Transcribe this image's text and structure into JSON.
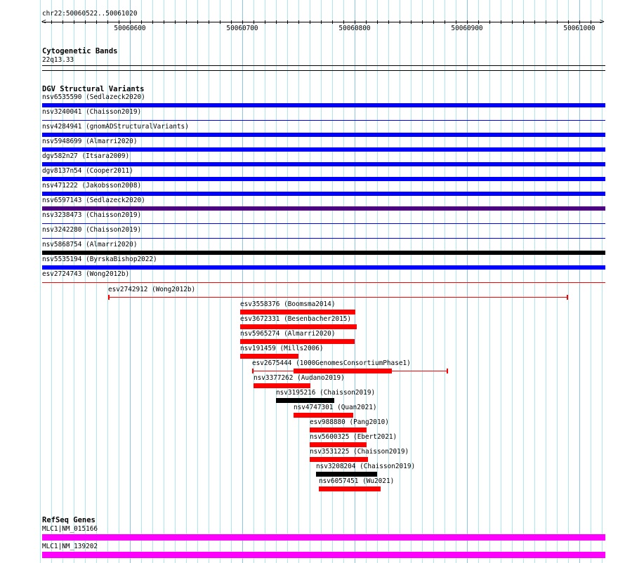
{
  "view": {
    "location": "chr22:50060522..50061020",
    "start": 50060522,
    "end": 50061020,
    "ruler_labels": [
      "50060600",
      "50060700",
      "50060800",
      "50060900",
      "50061000"
    ]
  },
  "colors": {
    "blue": "#0000ff",
    "purple": "#4b0082",
    "black": "#000000",
    "red": "#ff0000",
    "magenta": "#ff00ff",
    "grid_minor": "#aee6ee",
    "grid_major": "#8cc4e8"
  },
  "cytoband_track": {
    "title": "Cytogenetic Bands",
    "band": "22q13.33"
  },
  "dgv_track": {
    "title": "DGV Structural Variants",
    "full_rows": [
      {
        "label": "nsv6535590 (Sedlazeck2020)",
        "color": "blue",
        "style": "thick"
      },
      {
        "label": "nsv3240041 (Chaisson2019)",
        "color": "blue",
        "style": "thin"
      },
      {
        "label": "nsv4284941 (gnomADStructuralVariants)",
        "color": "blue",
        "style": "thick"
      },
      {
        "label": "nsv5948699 (Almarri2020)",
        "color": "blue",
        "style": "thick"
      },
      {
        "label": "dgv582n27 (Itsara2009)",
        "color": "blue",
        "style": "thick"
      },
      {
        "label": "dgv8137n54 (Cooper2011)",
        "color": "blue",
        "style": "thick"
      },
      {
        "label": "nsv471222 (Jakobsson2008)",
        "color": "blue",
        "style": "thick"
      },
      {
        "label": "nsv6597143 (Sedlazeck2020)",
        "color": "purple",
        "style": "thick"
      },
      {
        "label": "nsv3238473 (Chaisson2019)",
        "color": "blue",
        "style": "thin"
      },
      {
        "label": "nsv3242280 (Chaisson2019)",
        "color": "blue",
        "style": "thin"
      },
      {
        "label": "nsv5868754 (Almarri2020)",
        "color": "black",
        "style": "thick"
      },
      {
        "label": "nsv5535194 (ByrskaBishop2022)",
        "color": "blue",
        "style": "thick"
      },
      {
        "label": "esv2724743 (Wong2012b)",
        "color": "red",
        "style": "thin"
      }
    ],
    "features": [
      {
        "label": "esv2742912 (Wong2012b)",
        "color": "red",
        "start": 50060581,
        "end": 50060990,
        "style": "line"
      },
      {
        "label": "esv3558376 (Boomsma2014)",
        "color": "red",
        "start": 50060698,
        "end": 50060801,
        "style": "thick"
      },
      {
        "label": "esv3672331 (Besenbacher2015)",
        "color": "red",
        "start": 50060698,
        "end": 50060802,
        "style": "thick"
      },
      {
        "label": "nsv5965274 (Almarri2020)",
        "color": "red",
        "start": 50060698,
        "end": 50060800,
        "style": "thick"
      },
      {
        "label": "nsv191459 (Mills2006)",
        "color": "red",
        "start": 50060698,
        "end": 50060750,
        "style": "thick"
      },
      {
        "label": "esv2675444 (1000GenomesConsortiumPhase1)",
        "color": "red",
        "start": 50060709,
        "end": 50060883,
        "thick_start": 50060746,
        "thick_end": 50060833,
        "style": "mixed"
      },
      {
        "label": "nsv3377262 (Audano2019)",
        "color": "red",
        "start": 50060710,
        "end": 50060761,
        "style": "thick"
      },
      {
        "label": "nsv3195216 (Chaisson2019)",
        "color": "black",
        "start": 50060730,
        "end": 50060782,
        "style": "thick"
      },
      {
        "label": "nsv4747301 (Quan2021)",
        "color": "red",
        "start": 50060746,
        "end": 50060799,
        "style": "thick"
      },
      {
        "label": "esv988880 (Pang2010)",
        "color": "red",
        "start": 50060760,
        "end": 50060811,
        "style": "thick"
      },
      {
        "label": "nsv5600325 (Ebert2021)",
        "color": "red",
        "start": 50060760,
        "end": 50060811,
        "style": "thick"
      },
      {
        "label": "nsv3531225 (Chaisson2019)",
        "color": "red",
        "start": 50060760,
        "end": 50060812,
        "style": "thick"
      },
      {
        "label": "nsv3208204 (Chaisson2019)",
        "color": "black",
        "start": 50060766,
        "end": 50060820,
        "style": "thick"
      },
      {
        "label": "nsv6057451 (Wu2021)",
        "color": "red",
        "start": 50060768,
        "end": 50060823,
        "style": "thick"
      }
    ]
  },
  "refseq_track": {
    "title": "RefSeq Genes",
    "genes": [
      {
        "label": "MLC1|NM_015166",
        "color": "magenta"
      },
      {
        "label": "MLC1|NM_139202",
        "color": "magenta"
      }
    ]
  }
}
